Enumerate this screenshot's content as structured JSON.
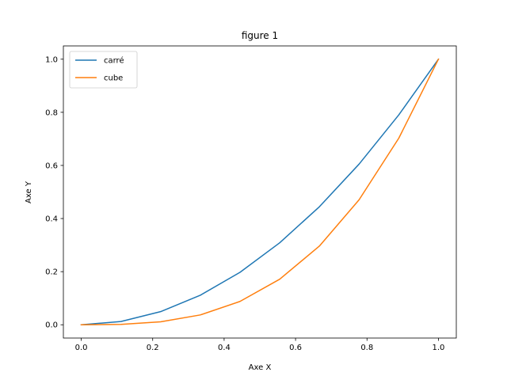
{
  "chart_data": {
    "type": "line",
    "title": "figure 1",
    "xlabel": "Axe X",
    "ylabel": "Axe Y",
    "xlim": [
      -0.05,
      1.05
    ],
    "ylim": [
      -0.05,
      1.05
    ],
    "xticks": [
      0.0,
      0.2,
      0.4,
      0.6,
      0.8,
      1.0
    ],
    "yticks": [
      0.0,
      0.2,
      0.4,
      0.6,
      0.8,
      1.0
    ],
    "xtick_labels": [
      "0.0",
      "0.2",
      "0.4",
      "0.6",
      "0.8",
      "1.0"
    ],
    "ytick_labels": [
      "0.0",
      "0.2",
      "0.4",
      "0.6",
      "0.8",
      "1.0"
    ],
    "grid": false,
    "legend_position": "top-left",
    "x": [
      0.0,
      0.1111,
      0.2222,
      0.3333,
      0.4444,
      0.5556,
      0.6667,
      0.7778,
      0.8889,
      1.0
    ],
    "series": [
      {
        "name": "carré",
        "color": "#1f77b4",
        "values": [
          0.0,
          0.0123,
          0.0494,
          0.1111,
          0.1975,
          0.3086,
          0.4444,
          0.6049,
          0.7901,
          1.0
        ]
      },
      {
        "name": "cube",
        "color": "#ff7f0e",
        "values": [
          0.0,
          0.0014,
          0.011,
          0.037,
          0.0878,
          0.1715,
          0.2963,
          0.4705,
          0.7023,
          1.0
        ]
      }
    ]
  }
}
